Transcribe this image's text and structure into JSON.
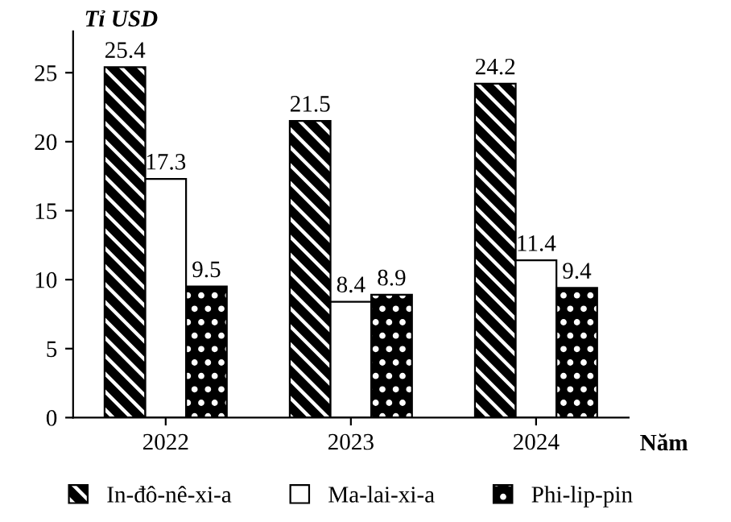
{
  "chart_data": {
    "type": "bar",
    "xlabel": "Năm",
    "ylabel": "Tỉ USD",
    "categories": [
      "2022",
      "2023",
      "2024"
    ],
    "series": [
      {
        "name": "In-đô-nê-xi-a",
        "color": "#000000",
        "values": [
          25.4,
          21.5,
          24.2
        ]
      },
      {
        "name": "Ma-lai-xi-a",
        "color": "#ffffff",
        "values": [
          17.3,
          8.4,
          11.4
        ]
      },
      {
        "name": "Phi-lip-pin",
        "color": "#000000",
        "values": [
          9.5,
          8.9,
          9.4
        ]
      }
    ],
    "ylim": [
      0,
      28
    ],
    "yticks": [
      0,
      5,
      10,
      15,
      20,
      25
    ],
    "grid": false,
    "legend": "bottom",
    "data_labels": true
  }
}
